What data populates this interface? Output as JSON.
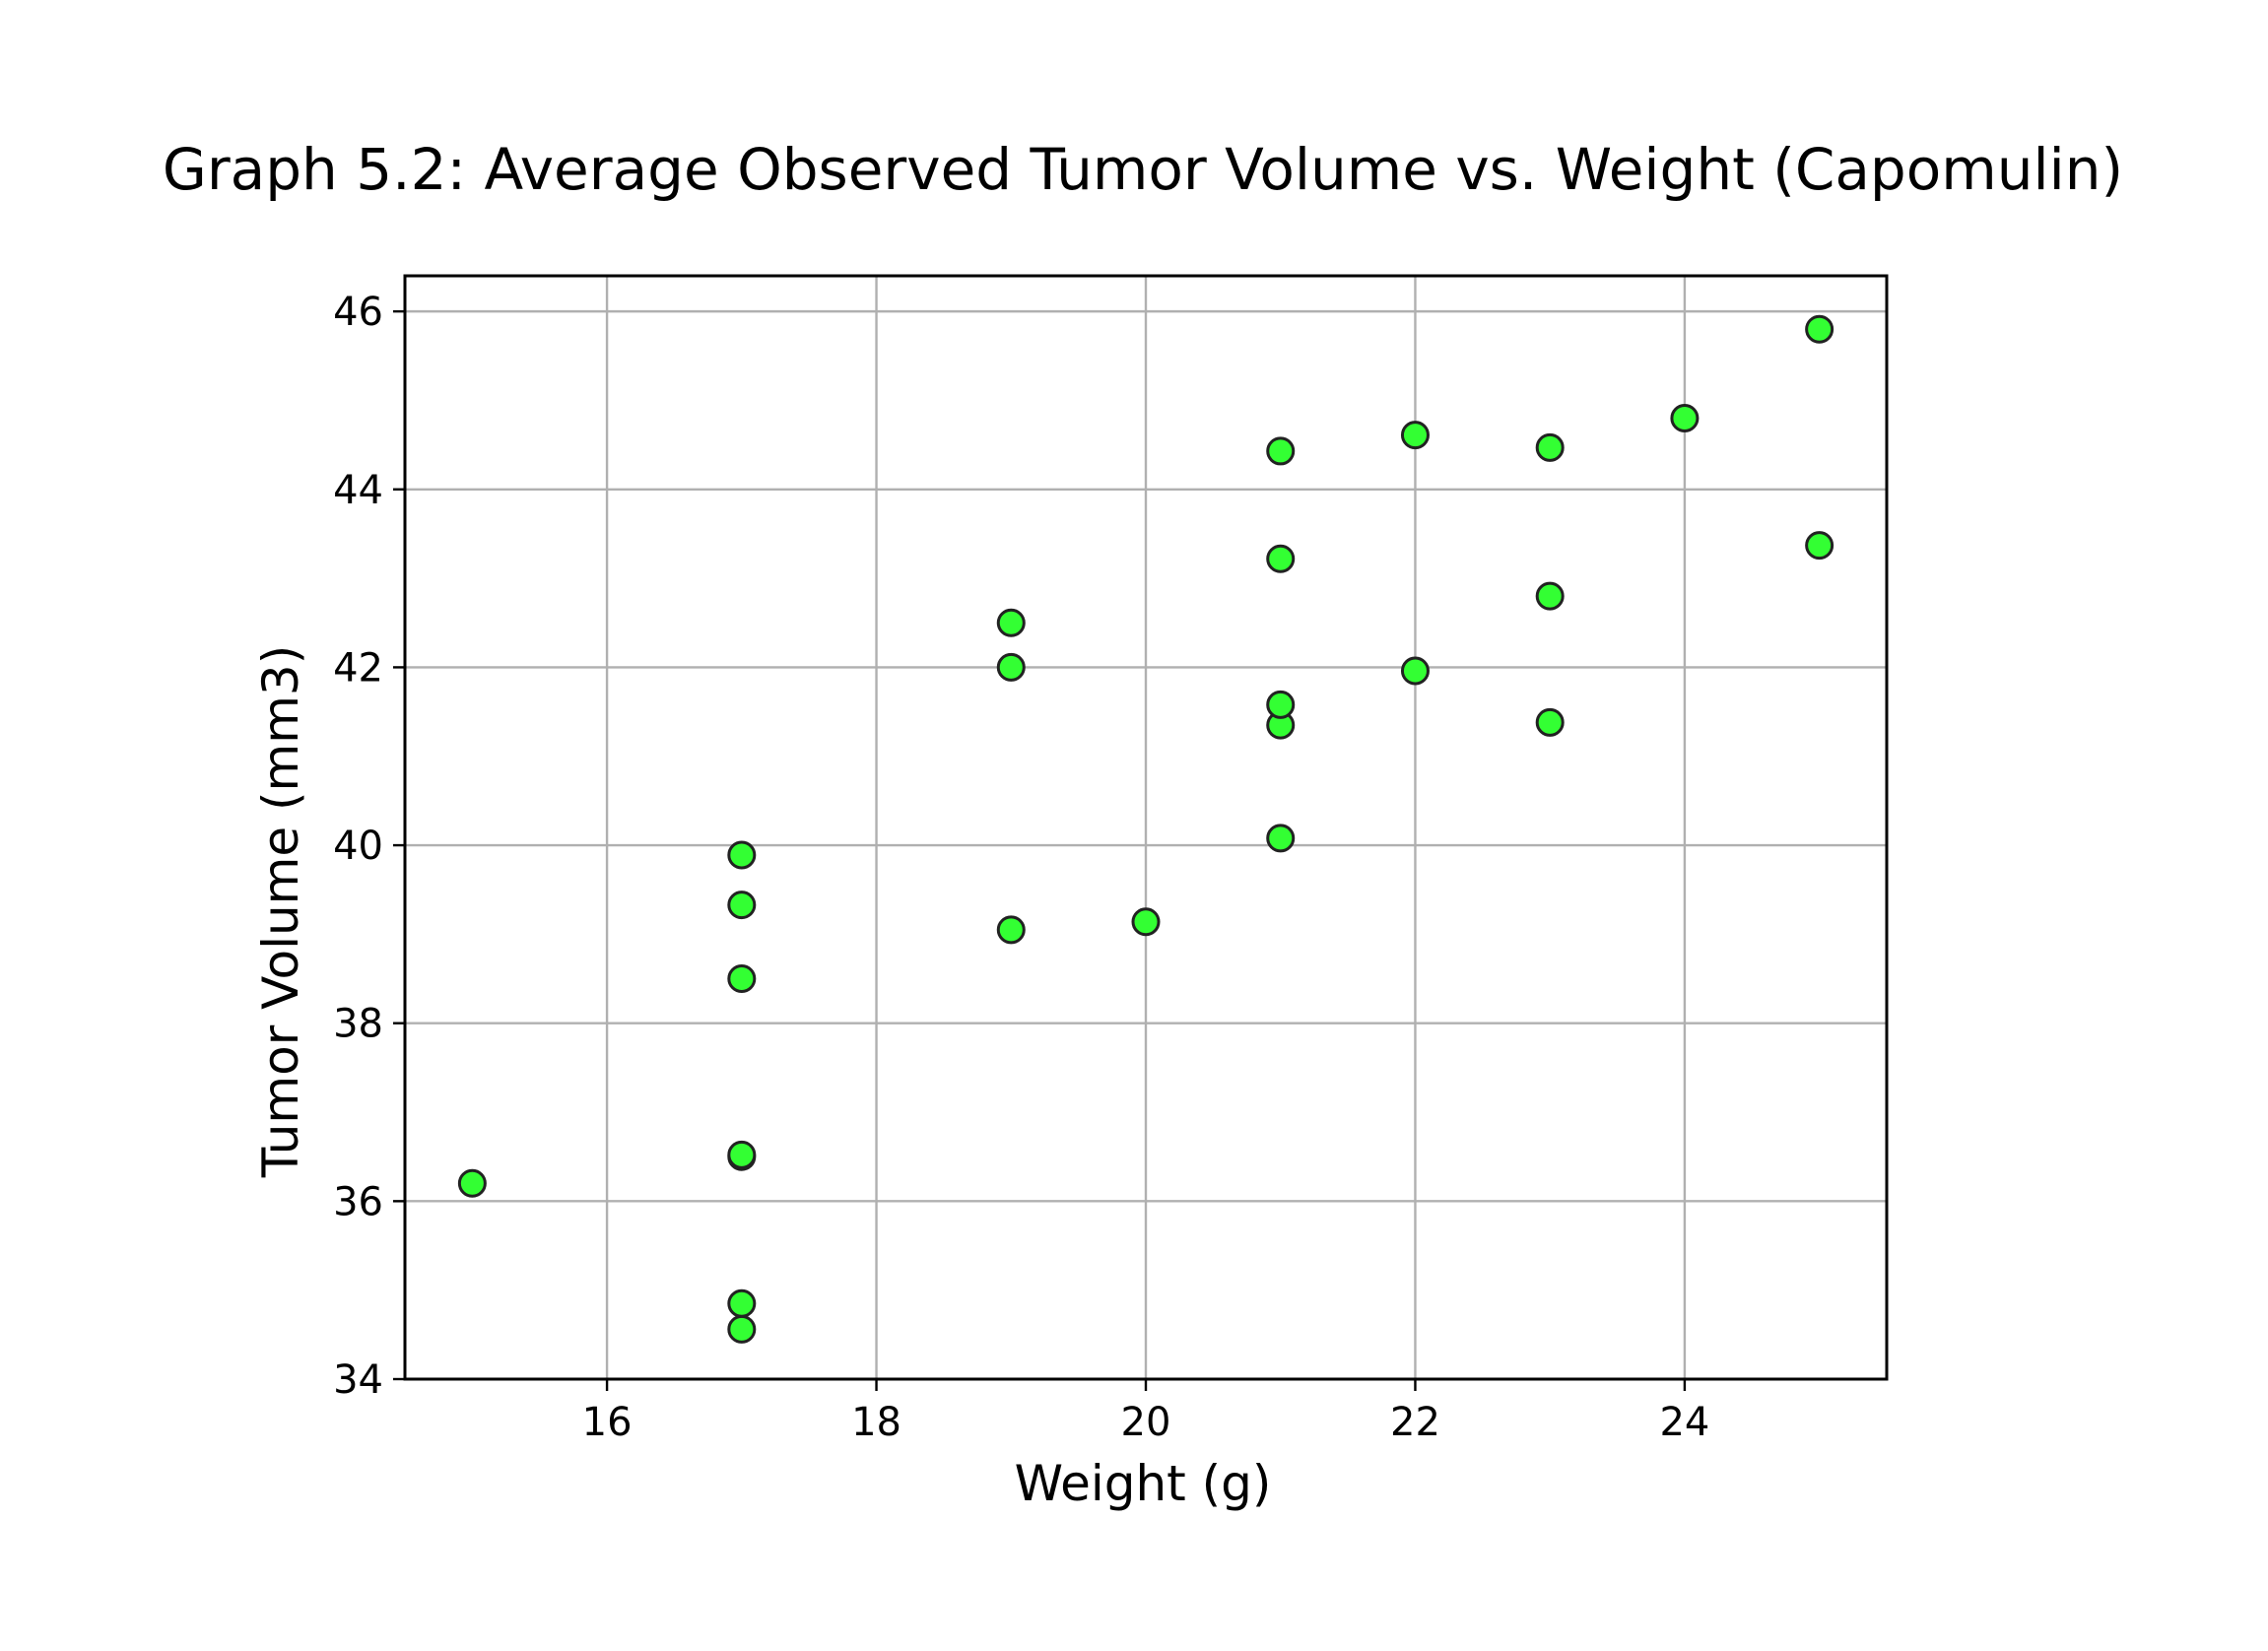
{
  "chart_data": {
    "type": "scatter",
    "title": "Graph 5.2: Average Observed Tumor Volume vs. Weight (Capomulin)",
    "xlabel": "Weight (g)",
    "ylabel": "Tumor Volume (mm3)",
    "xlim": [
      14.5,
      25.5
    ],
    "ylim": [
      34,
      46.4
    ],
    "xticks": [
      16,
      18,
      20,
      22,
      24
    ],
    "yticks": [
      34,
      36,
      38,
      40,
      42,
      44,
      46
    ],
    "grid": true,
    "marker_color": "#33ff33",
    "marker_edge_color": "#222222",
    "points": [
      {
        "x": 15,
        "y": 36.2
      },
      {
        "x": 17,
        "y": 34.56
      },
      {
        "x": 17,
        "y": 34.85
      },
      {
        "x": 17,
        "y": 36.5
      },
      {
        "x": 17,
        "y": 36.52
      },
      {
        "x": 17,
        "y": 38.5
      },
      {
        "x": 17,
        "y": 39.33
      },
      {
        "x": 17,
        "y": 39.89
      },
      {
        "x": 19,
        "y": 39.05
      },
      {
        "x": 19,
        "y": 42.0
      },
      {
        "x": 19,
        "y": 42.5
      },
      {
        "x": 20,
        "y": 39.14
      },
      {
        "x": 21,
        "y": 40.08
      },
      {
        "x": 21,
        "y": 41.35
      },
      {
        "x": 21,
        "y": 41.58
      },
      {
        "x": 21,
        "y": 43.22
      },
      {
        "x": 21,
        "y": 44.43
      },
      {
        "x": 22,
        "y": 41.96
      },
      {
        "x": 22,
        "y": 44.61
      },
      {
        "x": 23,
        "y": 41.38
      },
      {
        "x": 23,
        "y": 42.8
      },
      {
        "x": 23,
        "y": 44.47
      },
      {
        "x": 24,
        "y": 44.8
      },
      {
        "x": 25,
        "y": 43.37
      },
      {
        "x": 25,
        "y": 45.8
      }
    ]
  }
}
